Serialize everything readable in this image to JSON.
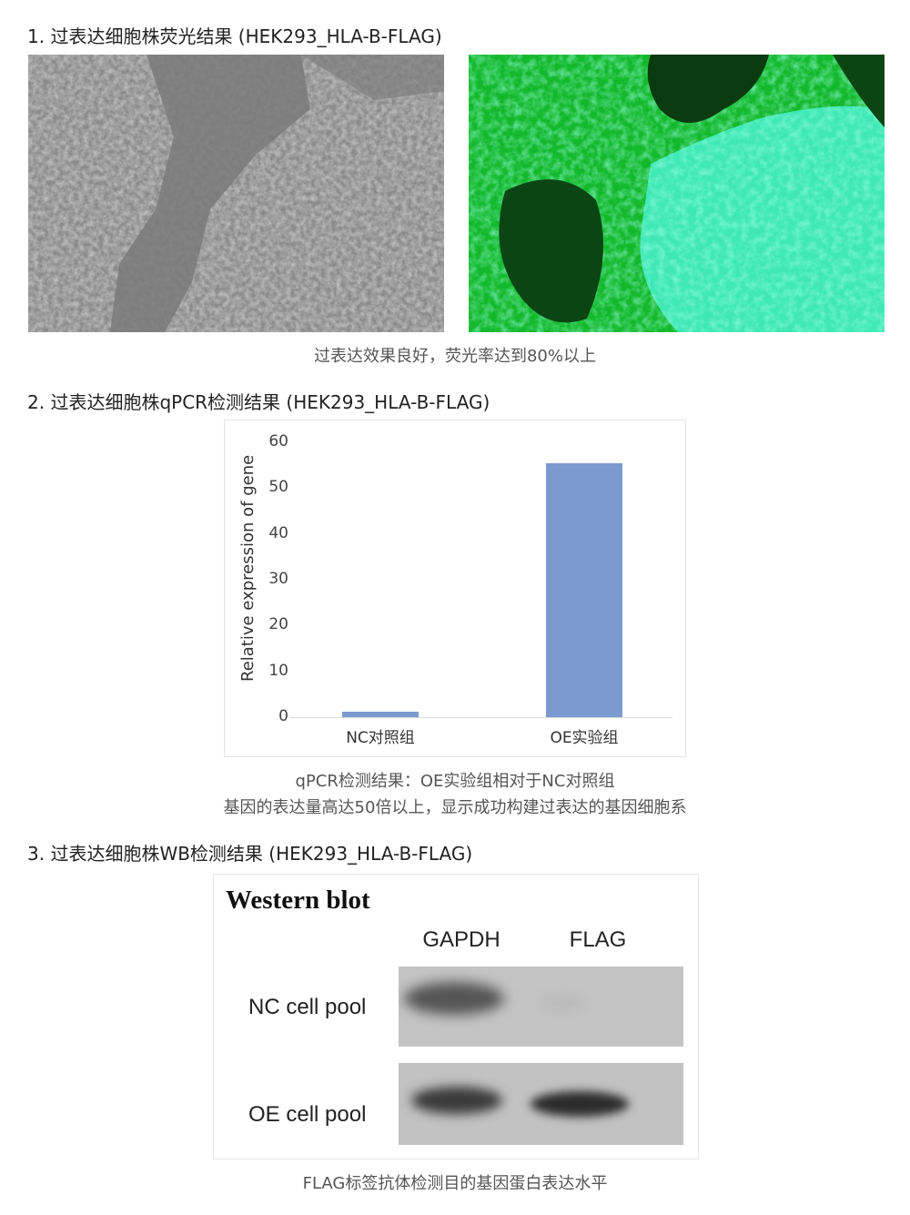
{
  "sections": [
    {
      "title": "1. 过表达细胞株荧光结果 (HEK293_HLA-B-FLAG)",
      "caption": "过表达效果良好，荧光率达到80%以上"
    },
    {
      "title": "2. 过表达细胞株qPCR检测结果 (HEK293_HLA-B-FLAG)",
      "caption_line1": "qPCR检测结果：OE实验组相对于NC对照组",
      "caption_line2": "基因的表达量高达50倍以上，显示成功构建过表达的基因细胞系"
    },
    {
      "title": "3. 过表达细胞株WB检测结果 (HEK293_HLA-B-FLAG)",
      "caption": "FLAG标签抗体检测目的基因蛋白表达水平"
    }
  ],
  "chart_data": {
    "type": "bar",
    "categories": [
      "NC对照组",
      "OE实验组"
    ],
    "values": [
      1.2,
      55.4
    ],
    "ylabel": "Relative expression of gene",
    "xlabel": "",
    "ylim": [
      0,
      60
    ],
    "yticks": [
      "0",
      "10",
      "20",
      "30",
      "40",
      "50",
      "60"
    ],
    "grid": false,
    "bar_color": "#7b9ad0"
  },
  "western_blot": {
    "title": "Western blot",
    "columns": [
      "GAPDH",
      "FLAG"
    ],
    "rows": [
      "NC cell pool",
      "OE cell pool"
    ]
  }
}
